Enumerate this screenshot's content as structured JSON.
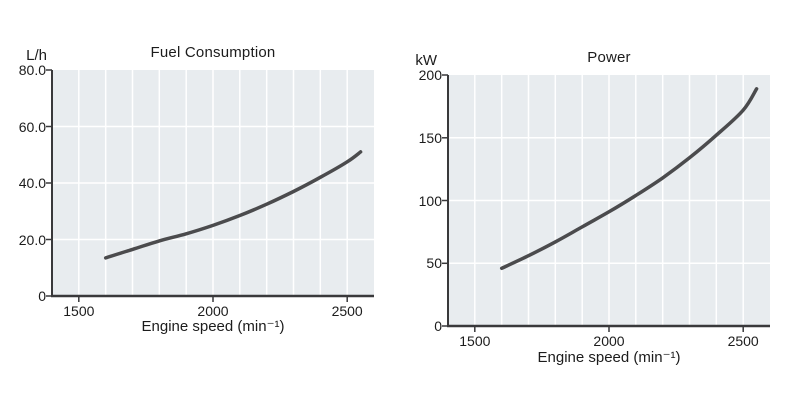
{
  "style": {
    "canvas_bg": "#ffffff",
    "plot_bg": "#e8ecef",
    "grid_color": "#ffffff",
    "curve_color": "#4b4b4d",
    "axis_color": "#39393b",
    "text_color": "#1c1c1c"
  },
  "chart_data": [
    {
      "type": "line",
      "title": "Fuel Consumption",
      "ylabel": "L/h",
      "xlabel": "Engine speed (min⁻¹)",
      "x": [
        1600,
        1700,
        1800,
        1900,
        2000,
        2100,
        2200,
        2300,
        2400,
        2500,
        2550
      ],
      "y": [
        13.5,
        16.5,
        19.5,
        22,
        25,
        28.5,
        32.5,
        37,
        42,
        47.5,
        51
      ],
      "xlim": [
        1400,
        2600
      ],
      "ylim": [
        0,
        80
      ],
      "xticks": [
        1500,
        2000,
        2500
      ],
      "xtick_labels": [
        "1500",
        "2000",
        "2500"
      ],
      "yticks": [
        0,
        20,
        40,
        60,
        80
      ],
      "ytick_labels": [
        "0",
        "20.0",
        "40.0",
        "60.0",
        "80.0"
      ],
      "xgrid_step": 100,
      "ygrid": [
        20,
        40,
        60
      ],
      "grid": true,
      "legend_position": "none"
    },
    {
      "type": "line",
      "title": "Power",
      "ylabel": "kW",
      "xlabel": "Engine speed (min⁻¹)",
      "x": [
        1600,
        1700,
        1800,
        1900,
        2000,
        2100,
        2200,
        2300,
        2400,
        2500,
        2550
      ],
      "y": [
        46,
        56,
        67,
        79,
        91,
        104,
        118,
        134,
        152,
        172,
        189
      ],
      "xlim": [
        1400,
        2600
      ],
      "ylim": [
        0,
        200
      ],
      "xticks": [
        1500,
        2000,
        2500
      ],
      "xtick_labels": [
        "1500",
        "2000",
        "2500"
      ],
      "yticks": [
        0,
        50,
        100,
        150,
        200
      ],
      "ytick_labels": [
        "0",
        "50",
        "100",
        "150",
        "200"
      ],
      "xgrid_step": 100,
      "ygrid": [
        50,
        100,
        150
      ],
      "grid": true,
      "legend_position": "none"
    }
  ]
}
